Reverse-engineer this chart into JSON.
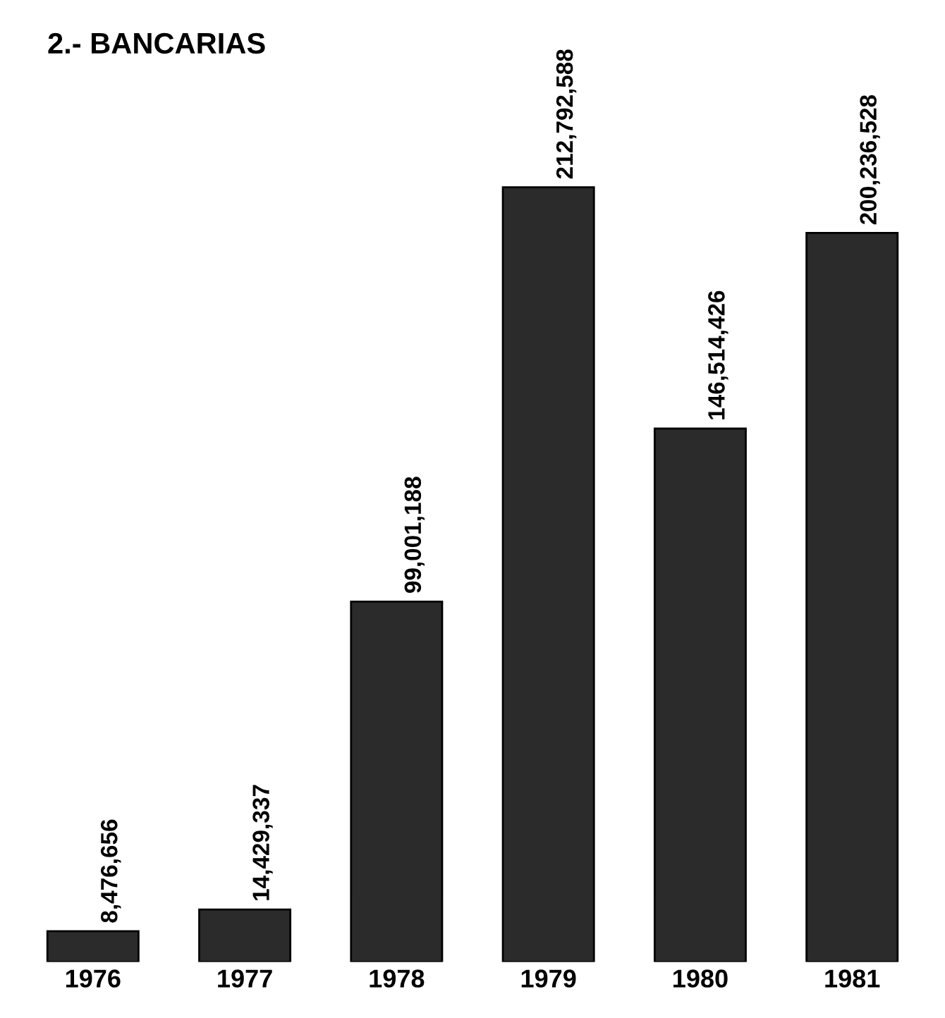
{
  "chart_data": {
    "type": "bar",
    "title": "2.- BANCARIAS",
    "categories": [
      "1976",
      "1977",
      "1978",
      "1979",
      "1980",
      "1981"
    ],
    "values": [
      8476656,
      14429337,
      99001188,
      212792588,
      146514426,
      200236528
    ],
    "value_labels": [
      "8,476,656",
      "14,429,337",
      "99,001,188",
      "212,792,588",
      "146,514,426",
      "200,236,528"
    ],
    "color": "#2b2b2b",
    "grid": false,
    "legend": false
  }
}
